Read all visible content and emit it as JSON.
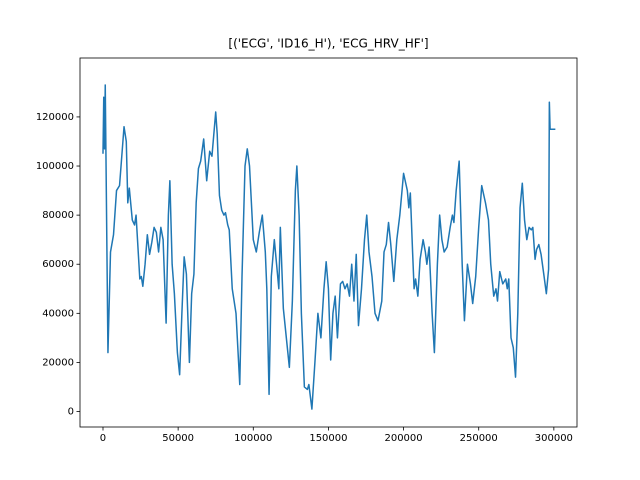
{
  "chart_data": {
    "type": "line",
    "title": "[('ECG', 'ID16_H'), 'ECG_HRV_HF']",
    "x": [
      0,
      500,
      1000,
      1500,
      3300,
      5000,
      7000,
      9000,
      11000,
      13000,
      14000,
      15500,
      16500,
      17500,
      19500,
      21000,
      22000,
      24500,
      25500,
      26500,
      28000,
      29500,
      31000,
      32500,
      34000,
      35500,
      37000,
      38500,
      40000,
      42000,
      43500,
      44500,
      46000,
      47500,
      49500,
      51000,
      52500,
      54000,
      55500,
      57500,
      59000,
      60500,
      62000,
      63500,
      65000,
      67000,
      69000,
      71000,
      72500,
      75000,
      76000,
      77500,
      79000,
      80500,
      81500,
      83000,
      84000,
      86000,
      88500,
      91000,
      92500,
      94500,
      96000,
      97500,
      100000,
      102000,
      104000,
      106000,
      108000,
      109000,
      110500,
      112000,
      114000,
      115500,
      117000,
      118000,
      120000,
      122000,
      124000,
      126000,
      128000,
      129000,
      130500,
      132000,
      134000,
      136000,
      137000,
      139000,
      141000,
      143000,
      145000,
      147000,
      148500,
      150000,
      151500,
      153000,
      154500,
      156000,
      158000,
      159500,
      161000,
      162500,
      164000,
      165500,
      167000,
      168500,
      170000,
      172000,
      174000,
      175500,
      177000,
      179000,
      181000,
      183000,
      185500,
      187000,
      188500,
      190000,
      191500,
      193500,
      195500,
      197500,
      200000,
      202500,
      203500,
      204500,
      206000,
      207000,
      208000,
      209500,
      211000,
      213000,
      214500,
      215500,
      217000,
      219000,
      220500,
      222500,
      224000,
      225500,
      227000,
      229000,
      231000,
      232500,
      233500,
      235000,
      237000,
      239000,
      240500,
      242500,
      244500,
      246000,
      248000,
      250000,
      252000,
      254500,
      256500,
      258000,
      260000,
      261500,
      262500,
      264000,
      266000,
      268000,
      269000,
      270000,
      271500,
      273000,
      274500,
      276000,
      277500,
      279000,
      280500,
      282000,
      283500,
      285000,
      286000,
      287500,
      288500,
      290000,
      291500,
      293500,
      295000,
      296500,
      297000,
      297500,
      301000
    ],
    "series": [
      {
        "color": "#1f77b4",
        "values": [
          105000,
          128000,
          107000,
          133000,
          24000,
          65000,
          72000,
          90000,
          92000,
          108000,
          116000,
          110000,
          85000,
          91000,
          78000,
          76000,
          80000,
          54000,
          55000,
          51000,
          60000,
          72000,
          64000,
          69000,
          75000,
          73000,
          65000,
          75000,
          70000,
          36000,
          80000,
          94000,
          60000,
          48000,
          24000,
          15000,
          40000,
          63000,
          56000,
          20000,
          48000,
          56000,
          85000,
          99000,
          102000,
          111000,
          94000,
          106000,
          104000,
          122000,
          113000,
          88000,
          82000,
          80000,
          81000,
          76000,
          74000,
          50000,
          40000,
          11000,
          55000,
          100000,
          107000,
          100000,
          70000,
          65000,
          73000,
          80000,
          65000,
          50000,
          7000,
          55000,
          70000,
          60000,
          50000,
          75000,
          42000,
          30000,
          18000,
          45000,
          90000,
          100000,
          80000,
          40000,
          10000,
          9000,
          11000,
          1000,
          20000,
          40000,
          30000,
          50000,
          61000,
          50000,
          21000,
          40000,
          47000,
          30000,
          52000,
          53000,
          50000,
          52000,
          47000,
          60000,
          45000,
          64000,
          35000,
          50000,
          70000,
          80000,
          65000,
          55000,
          40000,
          37000,
          45000,
          65000,
          68000,
          77000,
          68000,
          53000,
          70000,
          80000,
          97000,
          90000,
          83000,
          89000,
          65000,
          50000,
          54000,
          47000,
          62000,
          70000,
          65000,
          60000,
          67000,
          40000,
          24000,
          60000,
          80000,
          70000,
          65000,
          67000,
          75000,
          80000,
          77000,
          90000,
          102000,
          60000,
          37000,
          60000,
          52000,
          44000,
          55000,
          75000,
          92000,
          85000,
          78000,
          60000,
          47000,
          50000,
          45000,
          57000,
          52000,
          54000,
          50000,
          54000,
          30000,
          26000,
          14000,
          40000,
          83000,
          93000,
          78000,
          70000,
          75000,
          74000,
          75000,
          62000,
          66000,
          68000,
          64000,
          55000,
          48000,
          58000,
          126000,
          115000,
          115000
        ]
      }
    ],
    "xlim": [
      -15300,
      315400
    ],
    "ylim": [
      -6300,
      144000
    ],
    "xticks": [
      0,
      50000,
      100000,
      150000,
      200000,
      250000,
      300000
    ],
    "yticks": [
      0,
      20000,
      40000,
      60000,
      80000,
      100000,
      120000
    ]
  }
}
